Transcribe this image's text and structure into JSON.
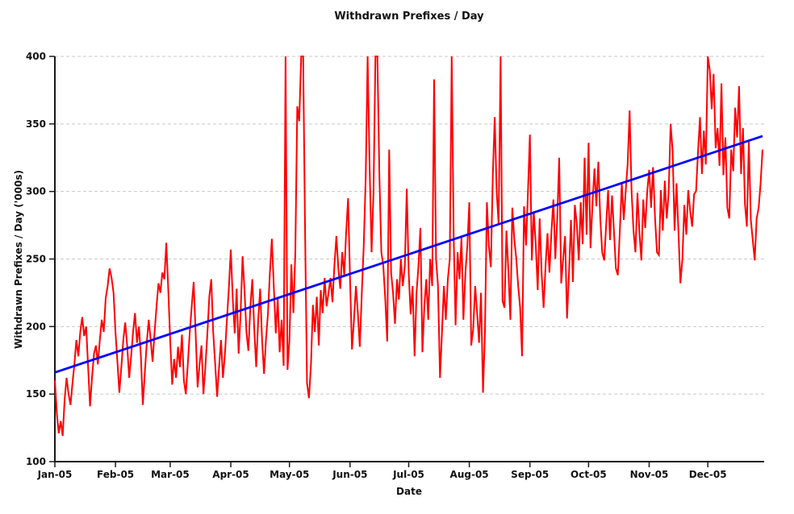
{
  "chart_data": {
    "type": "line",
    "title": "Withdrawn Prefixes / Day",
    "xlabel": "Date",
    "ylabel": "Withdrawn Prefixes / Day ('000s)",
    "ylim": [
      100,
      400
    ],
    "y_ticks": [
      100,
      150,
      200,
      250,
      300,
      350,
      400
    ],
    "x_tick_labels": [
      "Jan-05",
      "Feb-05",
      "Mar-05",
      "Apr-05",
      "May-05",
      "Jun-05",
      "Jul-05",
      "Aug-05",
      "Sep-05",
      "Oct-05",
      "Nov-05",
      "Dec-05"
    ],
    "x_tick_day_offsets": [
      0,
      31,
      59,
      90,
      120,
      151,
      181,
      212,
      243,
      273,
      304,
      334
    ],
    "grid": "horizontal-dashed",
    "legend": "none",
    "clip_at_ymax": true,
    "colors": {
      "daily_series": "#ff0000",
      "trend_line": "#0000ff",
      "gridline": "#c8c8c8",
      "axis": "#1a1a1a",
      "text": "#111111",
      "background": "#ffffff"
    },
    "series": [
      {
        "name": "daily-withdrawn-prefixes",
        "color": "#ff0000",
        "x_start_day": 0,
        "x_step_days": 1,
        "values": [
          160,
          136,
          121,
          130,
          119,
          146,
          162,
          150,
          142,
          158,
          172,
          190,
          178,
          196,
          207,
          193,
          200,
          170,
          141,
          162,
          180,
          186,
          172,
          190,
          205,
          196,
          221,
          230,
          243,
          236,
          225,
          196,
          174,
          151,
          170,
          190,
          203,
          186,
          162,
          178,
          196,
          210,
          188,
          200,
          178,
          142,
          165,
          188,
          205,
          190,
          174,
          196,
          215,
          232,
          225,
          240,
          235,
          262,
          228,
          190,
          157,
          176,
          162,
          185,
          170,
          194,
          160,
          150,
          172,
          196,
          215,
          233,
          196,
          155,
          172,
          186,
          150,
          170,
          195,
          222,
          235,
          196,
          172,
          148,
          170,
          190,
          162,
          180,
          205,
          228,
          257,
          220,
          195,
          228,
          180,
          210,
          252,
          227,
          196,
          182,
          215,
          235,
          198,
          170,
          205,
          228,
          190,
          165,
          190,
          210,
          240,
          265,
          230,
          195,
          221,
          181,
          205,
          171,
          400,
          168,
          190,
          246,
          210,
          255,
          363,
          352,
          400,
          400,
          270,
          158,
          147,
          172,
          216,
          196,
          222,
          186,
          227,
          210,
          236,
          215,
          225,
          236,
          218,
          245,
          267,
          243,
          228,
          255,
          238,
          270,
          295,
          235,
          183,
          205,
          230,
          210,
          185,
          225,
          260,
          310,
          400,
          320,
          255,
          300,
          400,
          400,
          311,
          255,
          245,
          221,
          189,
          331,
          240,
          225,
          202,
          235,
          220,
          250,
          230,
          245,
          302,
          240,
          209,
          230,
          178,
          225,
          245,
          273,
          181,
          215,
          235,
          205,
          250,
          230,
          383,
          250,
          230,
          162,
          195,
          230,
          205,
          235,
          250,
          400,
          268,
          201,
          255,
          235,
          266,
          205,
          240,
          260,
          292,
          186,
          198,
          230,
          210,
          188,
          225,
          151,
          196,
          292,
          260,
          244,
          311,
          355,
          300,
          276,
          400,
          219,
          214,
          271,
          240,
          205,
          288,
          265,
          251,
          230,
          214,
          178,
          289,
          260,
          300,
          342,
          249,
          285,
          260,
          227,
          280,
          240,
          214,
          245,
          269,
          240,
          270,
          294,
          250,
          280,
          325,
          232,
          250,
          267,
          206,
          240,
          279,
          233,
          290,
          276,
          249,
          292,
          261,
          325,
          268,
          336,
          258,
          290,
          317,
          289,
          322,
          280,
          255,
          249,
          275,
          301,
          264,
          297,
          270,
          243,
          238,
          270,
          306,
          279,
          300,
          320,
          360,
          300,
          271,
          255,
          299,
          270,
          249,
          294,
          273,
          300,
          316,
          288,
          318,
          280,
          255,
          253,
          301,
          271,
          308,
          280,
          300,
          350,
          330,
          271,
          306,
          270,
          232,
          250,
          290,
          268,
          301,
          285,
          274,
          298,
          300,
          330,
          355,
          313,
          345,
          320,
          400,
          390,
          361,
          387,
          332,
          347,
          319,
          380,
          312,
          340,
          288,
          280,
          331,
          315,
          362,
          340,
          378,
          313,
          347,
          291,
          274,
          337,
          279,
          264,
          249,
          280,
          288,
          306,
          331
        ]
      },
      {
        "name": "linear-trend",
        "color": "#0000ff",
        "trend_start_value": 166,
        "trend_end_value": 341
      }
    ]
  }
}
